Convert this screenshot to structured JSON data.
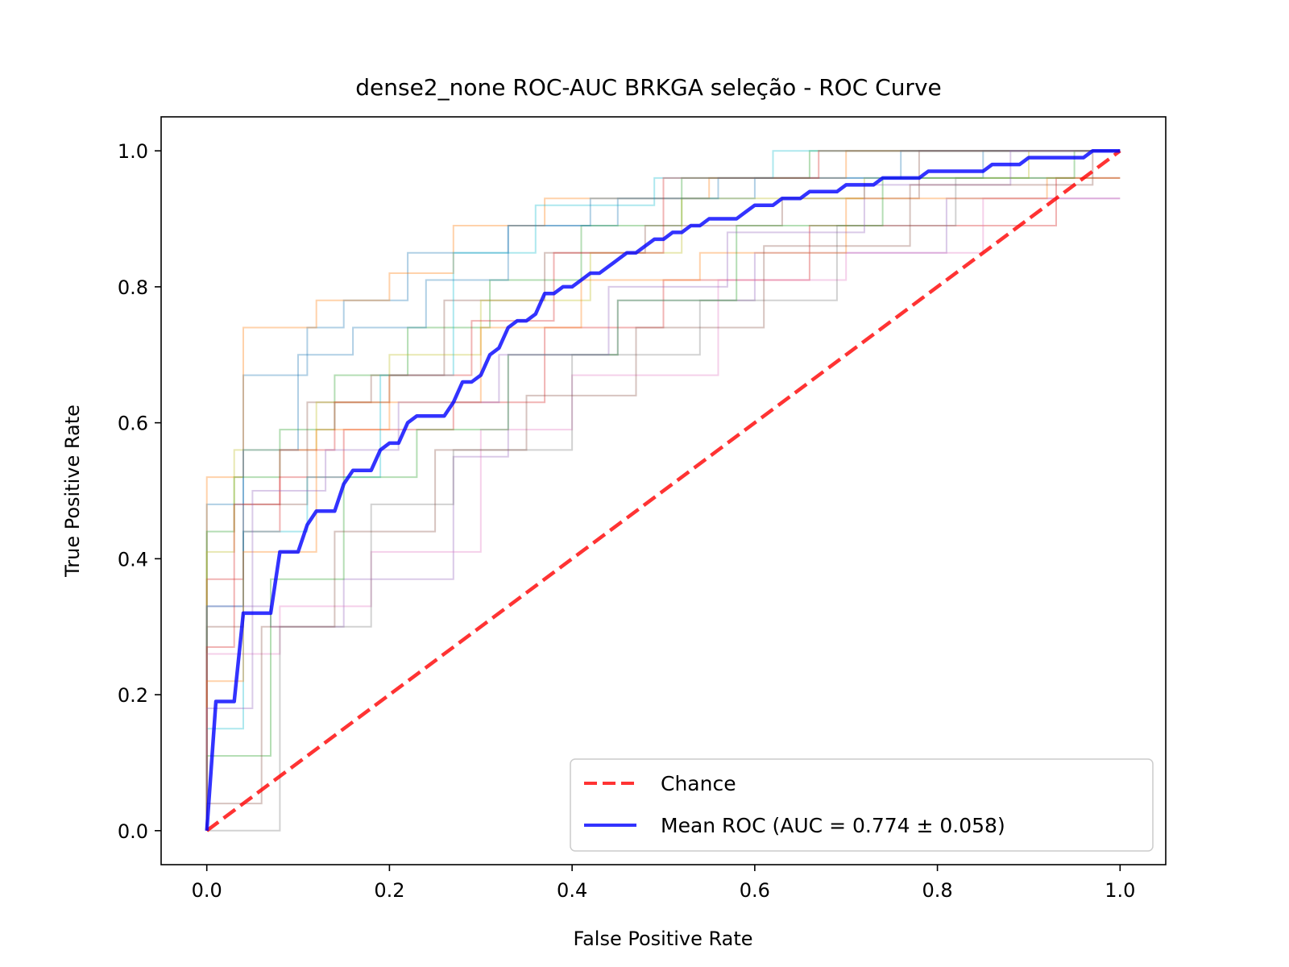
{
  "chart_data": {
    "type": "line",
    "title": "dense2_none ROC-AUC BRKGA seleção - ROC Curve",
    "xlabel": "False Positive Rate",
    "ylabel": "True Positive Rate",
    "xlim": [
      -0.05,
      1.05
    ],
    "ylim": [
      -0.05,
      1.05
    ],
    "xticks": [
      "0.0",
      "0.2",
      "0.4",
      "0.6",
      "0.8",
      "1.0"
    ],
    "yticks": [
      "0.0",
      "0.2",
      "0.4",
      "0.6",
      "0.8",
      "1.0"
    ],
    "grid": false,
    "legend_position": "lower-right",
    "legend": [
      "Chance",
      "Mean ROC (AUC = 0.774 ± 0.058)"
    ],
    "colors": {
      "chance": "#ff0000",
      "mean": "#0000ff",
      "folds": [
        "#1f77b4",
        "#ff7f0e",
        "#2ca02c",
        "#d62728",
        "#9467bd",
        "#8c564b",
        "#e377c2",
        "#7f7f7f",
        "#bcbd22",
        "#17becf"
      ]
    },
    "series": [
      {
        "name": "Chance",
        "style": "dashed",
        "x": [
          0,
          1
        ],
        "y": [
          0,
          1
        ]
      },
      {
        "name": "Mean ROC (AUC = 0.774 ± 0.058)",
        "style": "solid",
        "x": [
          0.0,
          0.01,
          0.03,
          0.04,
          0.07,
          0.08,
          0.1,
          0.11,
          0.12,
          0.14,
          0.15,
          0.16,
          0.18,
          0.19,
          0.2,
          0.21,
          0.22,
          0.23,
          0.235,
          0.26,
          0.27,
          0.28,
          0.29,
          0.3,
          0.31,
          0.32,
          0.33,
          0.34,
          0.35,
          0.36,
          0.37,
          0.38,
          0.39,
          0.4,
          0.41,
          0.42,
          0.43,
          0.44,
          0.45,
          0.46,
          0.47,
          0.48,
          0.49,
          0.5,
          0.51,
          0.52,
          0.53,
          0.54,
          0.55,
          0.56,
          0.57,
          0.58,
          0.59,
          0.6,
          0.61,
          0.62,
          0.63,
          0.64,
          0.65,
          0.66,
          0.67,
          0.68,
          0.69,
          0.7,
          0.71,
          0.72,
          0.73,
          0.74,
          0.75,
          0.76,
          0.77,
          0.78,
          0.79,
          0.8,
          0.81,
          0.82,
          0.83,
          0.84,
          0.85,
          0.86,
          0.87,
          0.88,
          0.89,
          0.9,
          0.91,
          0.92,
          0.93,
          0.94,
          0.95,
          0.96,
          0.97,
          0.98,
          0.99,
          1.0
        ],
        "y": [
          0.0,
          0.19,
          0.19,
          0.32,
          0.32,
          0.41,
          0.41,
          0.45,
          0.47,
          0.47,
          0.51,
          0.53,
          0.53,
          0.56,
          0.57,
          0.57,
          0.6,
          0.61,
          0.61,
          0.61,
          0.63,
          0.66,
          0.66,
          0.67,
          0.7,
          0.71,
          0.74,
          0.75,
          0.75,
          0.76,
          0.79,
          0.79,
          0.8,
          0.8,
          0.81,
          0.82,
          0.82,
          0.83,
          0.84,
          0.85,
          0.85,
          0.86,
          0.87,
          0.87,
          0.88,
          0.88,
          0.89,
          0.89,
          0.9,
          0.9,
          0.9,
          0.9,
          0.91,
          0.92,
          0.92,
          0.92,
          0.93,
          0.93,
          0.93,
          0.94,
          0.94,
          0.94,
          0.94,
          0.95,
          0.95,
          0.95,
          0.95,
          0.96,
          0.96,
          0.96,
          0.96,
          0.96,
          0.97,
          0.97,
          0.97,
          0.97,
          0.97,
          0.97,
          0.97,
          0.98,
          0.98,
          0.98,
          0.98,
          0.99,
          0.99,
          0.99,
          0.99,
          0.99,
          0.99,
          0.99,
          1.0,
          1.0,
          1.0,
          1.0
        ]
      }
    ],
    "fold_curves": [
      {
        "x": [
          0,
          0,
          0.04,
          0.04,
          0.11,
          0.11,
          0.15,
          0.15,
          0.22,
          0.22,
          0.33,
          0.33,
          0.45,
          0.45,
          0.6,
          0.6,
          0.85,
          0.85,
          1.0
        ],
        "y": [
          0,
          0.48,
          0.48,
          0.67,
          0.67,
          0.74,
          0.74,
          0.78,
          0.78,
          0.85,
          0.85,
          0.89,
          0.89,
          0.93,
          0.93,
          0.96,
          0.96,
          1.0,
          1.0
        ]
      },
      {
        "x": [
          0,
          0,
          0.04,
          0.04,
          0.12,
          0.12,
          0.2,
          0.2,
          0.27,
          0.27,
          0.37,
          0.37,
          0.55,
          0.55,
          0.7,
          0.7,
          1.0
        ],
        "y": [
          0,
          0.52,
          0.52,
          0.74,
          0.74,
          0.78,
          0.78,
          0.82,
          0.82,
          0.89,
          0.89,
          0.93,
          0.93,
          0.96,
          0.96,
          1.0,
          1.0
        ]
      },
      {
        "x": [
          0,
          0,
          0.03,
          0.03,
          0.08,
          0.08,
          0.14,
          0.14,
          0.22,
          0.22,
          0.31,
          0.31,
          0.41,
          0.41,
          0.52,
          0.52,
          0.66,
          0.66,
          1.0
        ],
        "y": [
          0,
          0.44,
          0.44,
          0.52,
          0.52,
          0.59,
          0.59,
          0.67,
          0.67,
          0.74,
          0.74,
          0.81,
          0.81,
          0.89,
          0.89,
          0.96,
          0.96,
          1.0,
          1.0
        ]
      },
      {
        "x": [
          0,
          0,
          0.04,
          0.04,
          0.08,
          0.08,
          0.15,
          0.15,
          0.27,
          0.27,
          0.37,
          0.37,
          0.5,
          0.5,
          0.66,
          0.66,
          0.93,
          0.93,
          1.0
        ],
        "y": [
          0,
          0.37,
          0.37,
          0.44,
          0.44,
          0.52,
          0.52,
          0.59,
          0.59,
          0.63,
          0.63,
          0.74,
          0.74,
          0.81,
          0.81,
          0.89,
          0.89,
          0.96,
          0.96
        ]
      },
      {
        "x": [
          0,
          0,
          0.07,
          0.07,
          0.15,
          0.15,
          0.27,
          0.27,
          0.33,
          0.33,
          0.45,
          0.45,
          0.6,
          0.6,
          0.81,
          0.81,
          1.0
        ],
        "y": [
          0,
          0.33,
          0.33,
          0.3,
          0.3,
          0.37,
          0.37,
          0.55,
          0.55,
          0.7,
          0.7,
          0.78,
          0.78,
          0.85,
          0.85,
          0.93,
          0.93
        ]
      },
      {
        "x": [
          0,
          0,
          0.04,
          0.04,
          0.11,
          0.11,
          0.18,
          0.18,
          0.26,
          0.26,
          0.37,
          0.37,
          0.48,
          0.48,
          0.63,
          0.63,
          0.78,
          0.78,
          1.0
        ],
        "y": [
          0,
          0.3,
          0.3,
          0.48,
          0.48,
          0.63,
          0.63,
          0.67,
          0.67,
          0.78,
          0.78,
          0.85,
          0.85,
          0.89,
          0.89,
          0.93,
          0.93,
          1.0,
          1.0
        ]
      },
      {
        "x": [
          0,
          0,
          0.08,
          0.08,
          0.18,
          0.18,
          0.3,
          0.3,
          0.4,
          0.4,
          0.56,
          0.56,
          0.7,
          0.7,
          0.85,
          0.85,
          1.0
        ],
        "y": [
          0,
          0.26,
          0.26,
          0.33,
          0.33,
          0.41,
          0.41,
          0.59,
          0.59,
          0.67,
          0.67,
          0.81,
          0.81,
          0.85,
          0.85,
          0.93,
          0.93
        ]
      },
      {
        "x": [
          0,
          0,
          0.08,
          0.08,
          0.18,
          0.18,
          0.27,
          0.27,
          0.4,
          0.4,
          0.54,
          0.54,
          0.69,
          0.69,
          0.82,
          0.82,
          1.0
        ],
        "y": [
          0,
          0.0,
          0.0,
          0.3,
          0.3,
          0.48,
          0.48,
          0.56,
          0.56,
          0.7,
          0.7,
          0.78,
          0.78,
          0.89,
          0.89,
          0.96,
          0.96
        ]
      },
      {
        "x": [
          0,
          0,
          0.03,
          0.03,
          0.12,
          0.12,
          0.2,
          0.2,
          0.3,
          0.3,
          0.42,
          0.42,
          0.52,
          0.52,
          0.72,
          0.72,
          0.9,
          0.9,
          1.0
        ],
        "y": [
          0,
          0.41,
          0.41,
          0.56,
          0.56,
          0.63,
          0.63,
          0.7,
          0.7,
          0.78,
          0.78,
          0.85,
          0.85,
          0.93,
          0.93,
          0.96,
          0.96,
          1.0,
          1.0
        ]
      },
      {
        "x": [
          0,
          0,
          0.04,
          0.04,
          0.11,
          0.11,
          0.19,
          0.19,
          0.27,
          0.27,
          0.36,
          0.36,
          0.49,
          0.49,
          0.62,
          0.62,
          0.8,
          0.8,
          1.0
        ],
        "y": [
          0,
          0.15,
          0.15,
          0.44,
          0.44,
          0.52,
          0.52,
          0.67,
          0.67,
          0.85,
          0.85,
          0.92,
          0.92,
          0.96,
          0.96,
          1.0,
          1.0,
          1.0,
          1.0
        ]
      },
      {
        "x": [
          0,
          0,
          0.04,
          0.04,
          0.1,
          0.1,
          0.16,
          0.16,
          0.24,
          0.24,
          0.33,
          0.33,
          0.42,
          0.42,
          0.56,
          0.56,
          0.76,
          0.76,
          1.0
        ],
        "y": [
          0,
          0.33,
          0.33,
          0.56,
          0.56,
          0.7,
          0.7,
          0.74,
          0.74,
          0.81,
          0.81,
          0.89,
          0.89,
          0.93,
          0.93,
          0.96,
          0.96,
          1.0,
          1.0
        ]
      },
      {
        "x": [
          0,
          0,
          0.04,
          0.04,
          0.12,
          0.12,
          0.2,
          0.2,
          0.3,
          0.3,
          0.41,
          0.41,
          0.54,
          0.54,
          0.7,
          0.7,
          0.92,
          0.92,
          1.0
        ],
        "y": [
          0,
          0.22,
          0.22,
          0.41,
          0.41,
          0.59,
          0.59,
          0.63,
          0.63,
          0.74,
          0.74,
          0.81,
          0.81,
          0.85,
          0.85,
          0.93,
          0.93,
          0.96,
          0.96
        ]
      },
      {
        "x": [
          0,
          0,
          0.07,
          0.07,
          0.15,
          0.15,
          0.23,
          0.23,
          0.33,
          0.33,
          0.45,
          0.45,
          0.58,
          0.58,
          0.74,
          0.74,
          0.95,
          0.95,
          1.0
        ],
        "y": [
          0,
          0.11,
          0.11,
          0.37,
          0.37,
          0.52,
          0.52,
          0.59,
          0.59,
          0.7,
          0.7,
          0.78,
          0.78,
          0.89,
          0.89,
          0.96,
          0.96,
          1.0,
          1.0
        ]
      },
      {
        "x": [
          0,
          0,
          0.03,
          0.03,
          0.08,
          0.08,
          0.14,
          0.14,
          0.2,
          0.2,
          0.29,
          0.29,
          0.38,
          0.38,
          0.5,
          0.5,
          0.67,
          0.67,
          1.0
        ],
        "y": [
          0,
          0.27,
          0.27,
          0.48,
          0.48,
          0.56,
          0.56,
          0.63,
          0.63,
          0.67,
          0.67,
          0.75,
          0.75,
          0.85,
          0.85,
          0.96,
          0.96,
          1.0,
          1.0
        ]
      },
      {
        "x": [
          0,
          0,
          0.05,
          0.05,
          0.13,
          0.13,
          0.21,
          0.21,
          0.32,
          0.32,
          0.44,
          0.44,
          0.57,
          0.57,
          0.72,
          0.72,
          0.88,
          0.88,
          1.0
        ],
        "y": [
          0,
          0.18,
          0.18,
          0.5,
          0.5,
          0.56,
          0.56,
          0.63,
          0.63,
          0.7,
          0.7,
          0.8,
          0.8,
          0.88,
          0.88,
          0.95,
          0.95,
          1.0,
          1.0
        ]
      },
      {
        "x": [
          0,
          0,
          0.06,
          0.06,
          0.14,
          0.14,
          0.25,
          0.25,
          0.35,
          0.35,
          0.47,
          0.47,
          0.61,
          0.61,
          0.77,
          0.77,
          0.97,
          0.97,
          1.0
        ],
        "y": [
          0,
          0.04,
          0.04,
          0.3,
          0.3,
          0.44,
          0.44,
          0.56,
          0.56,
          0.64,
          0.64,
          0.74,
          0.74,
          0.86,
          0.86,
          0.95,
          0.95,
          1.0,
          1.0
        ]
      }
    ]
  }
}
